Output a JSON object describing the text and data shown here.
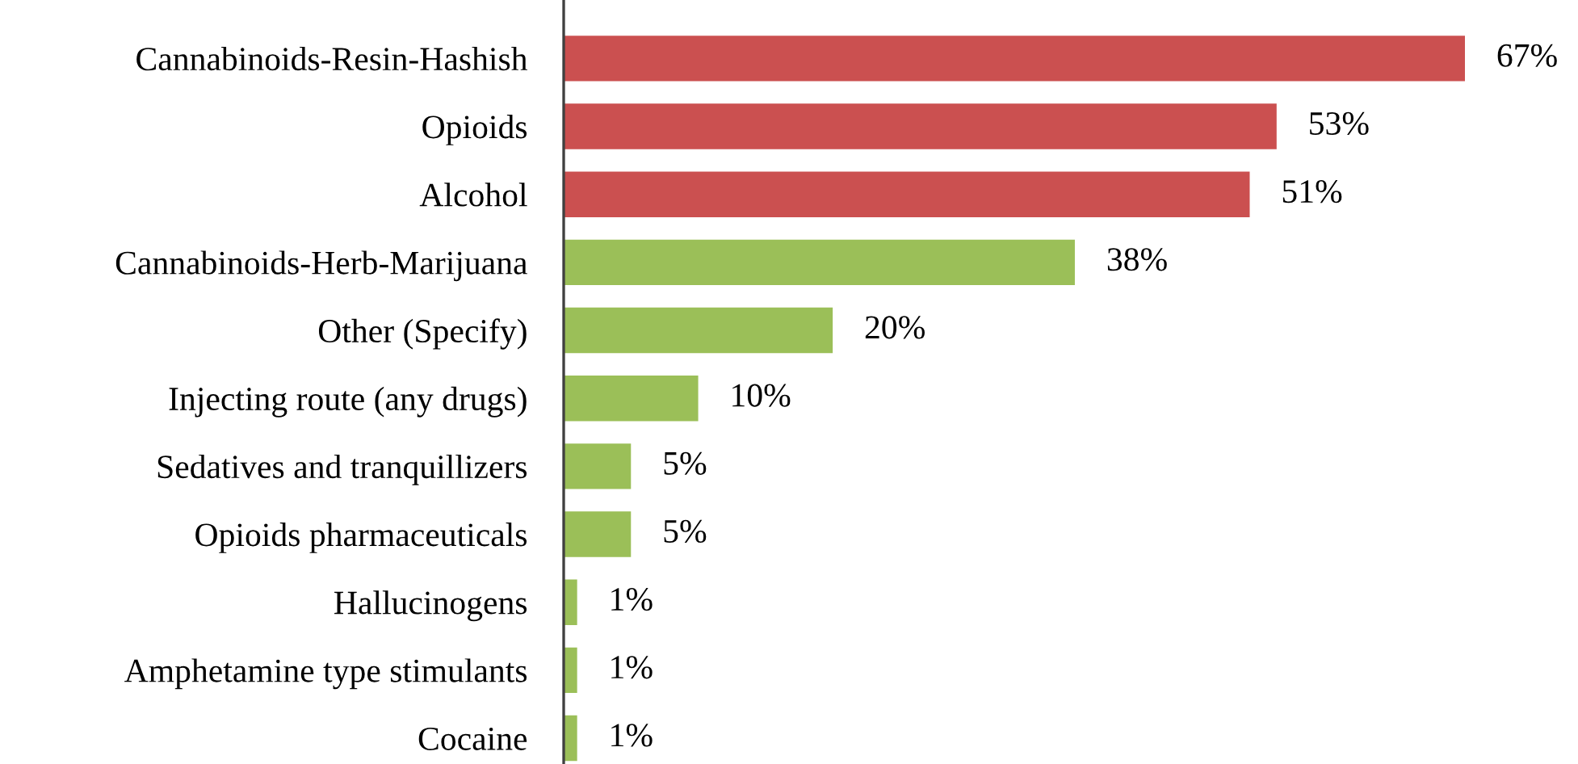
{
  "chart_data": {
    "type": "bar",
    "orientation": "horizontal",
    "categories": [
      "Cannabinoids-Resin-Hashish",
      "Opioids",
      "Alcohol",
      "Cannabinoids-Herb-Marijuana",
      "Other (Specify)",
      "Injecting route (any drugs)",
      "Sedatives and tranquillizers",
      "Opioids pharmaceuticals",
      "Hallucinogens",
      "Amphetamine type stimulants",
      "Cocaine"
    ],
    "values": [
      67,
      53,
      51,
      38,
      20,
      10,
      5,
      5,
      1,
      1,
      1
    ],
    "value_labels": [
      "67%",
      "53%",
      "51%",
      "38%",
      "20%",
      "10%",
      "5%",
      "5%",
      "1%",
      "1%",
      "1%"
    ],
    "colors": [
      "#cb5050",
      "#cb5050",
      "#cb5050",
      "#9bbf58",
      "#9bbf58",
      "#9bbf58",
      "#9bbf58",
      "#9bbf58",
      "#9bbf58",
      "#9bbf58",
      "#9bbf58"
    ],
    "grid": false,
    "legend": false
  }
}
